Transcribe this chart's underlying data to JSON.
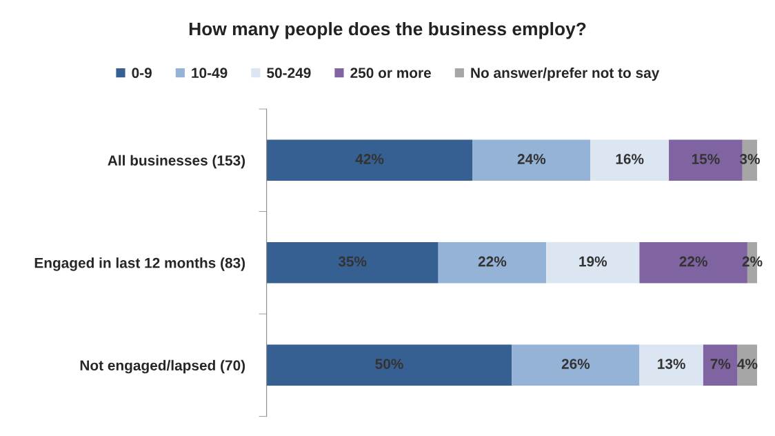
{
  "chart_data": {
    "type": "bar",
    "orientation": "horizontal",
    "stacked": true,
    "title": "How many people does the business employ?",
    "categories": [
      "All businesses (153)",
      "Engaged in last 12 months (83)",
      "Not engaged/lapsed (70)"
    ],
    "series": [
      {
        "name": "0-9",
        "color": "#376092",
        "values": [
          42,
          35,
          50
        ],
        "value_labels": [
          "42%",
          "35%",
          "50%"
        ]
      },
      {
        "name": "10-49",
        "color": "#95b3d7",
        "values": [
          24,
          22,
          26
        ],
        "value_labels": [
          "24%",
          "22%",
          "26%"
        ]
      },
      {
        "name": "50-249",
        "color": "#dce6f2",
        "values": [
          16,
          19,
          13
        ],
        "value_labels": [
          "16%",
          "19%",
          "13%"
        ]
      },
      {
        "name": "250 or more",
        "color": "#8064a2",
        "values": [
          15,
          22,
          7
        ],
        "value_labels": [
          "15%",
          "22%",
          "7%"
        ]
      },
      {
        "name": "No answer/prefer not to say",
        "color": "#a6a6a6",
        "values": [
          3,
          2,
          4
        ],
        "value_labels": [
          "3%",
          "2%",
          "4%"
        ]
      }
    ],
    "legend": "top",
    "grid": false
  }
}
